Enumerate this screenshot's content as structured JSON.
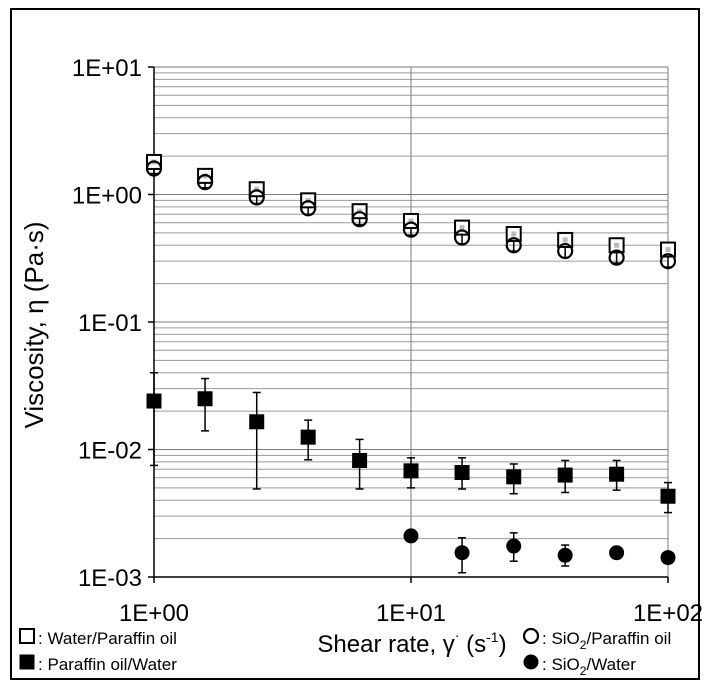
{
  "chart_data": {
    "type": "scatter",
    "title": "",
    "xlabel": "Shear rate, γ˙ (s⁻¹)",
    "ylabel": "Viscosity, η (Pa·s)",
    "x_scale": "log",
    "y_scale": "log",
    "xlim": [
      1,
      100
    ],
    "ylim": [
      0.001,
      10
    ],
    "x_ticks": [
      "1E+00",
      "1E+01",
      "1E+02"
    ],
    "y_ticks": [
      "1E-03",
      "1E-02",
      "1E-01",
      "1E+00",
      "1E+01"
    ],
    "grid": "major and minor horizontal, major vertical",
    "legend_position": "bottom",
    "series": [
      {
        "name": "Water/Paraffin oil",
        "marker": "open-square",
        "x": [
          1,
          1.58,
          2.51,
          3.98,
          6.31,
          10,
          15.8,
          25.1,
          39.8,
          63.1,
          100
        ],
        "y": [
          1.8,
          1.4,
          1.1,
          0.9,
          0.74,
          0.62,
          0.55,
          0.49,
          0.44,
          0.4,
          0.37
        ]
      },
      {
        "name": "SiO₂/Paraffin oil",
        "marker": "open-circle",
        "x": [
          1,
          1.58,
          2.51,
          3.98,
          6.31,
          10,
          15.8,
          25.1,
          39.8,
          63.1,
          100
        ],
        "y": [
          1.6,
          1.25,
          0.95,
          0.78,
          0.64,
          0.53,
          0.46,
          0.4,
          0.36,
          0.32,
          0.3
        ],
        "yerr": [
          0.14,
          0.12,
          0.1,
          0.08,
          0.06,
          0.05,
          0.05,
          0.04,
          0.04,
          0.03,
          0.03
        ]
      },
      {
        "name": "Paraffin oil/Water",
        "marker": "filled-square",
        "x": [
          1,
          1.58,
          2.51,
          3.98,
          6.31,
          10,
          15.8,
          25.1,
          39.8,
          63.1,
          100
        ],
        "y": [
          0.024,
          0.025,
          0.0165,
          0.0125,
          0.0082,
          0.0068,
          0.0066,
          0.0061,
          0.0063,
          0.0064,
          0.0043
        ],
        "y_low": [
          0.0075,
          0.014,
          0.0049,
          0.0083,
          0.0049,
          0.005,
          0.0049,
          0.0045,
          0.0046,
          0.0048,
          0.0032
        ],
        "y_high": [
          0.04,
          0.036,
          0.028,
          0.017,
          0.012,
          0.0086,
          0.0086,
          0.0077,
          0.0082,
          0.0082,
          0.0055
        ]
      },
      {
        "name": "SiO₂/Water",
        "marker": "filled-circle",
        "x": [
          10,
          15.8,
          25.1,
          39.8,
          63.1,
          100
        ],
        "y": [
          0.0021,
          0.00155,
          0.00175,
          0.00148,
          0.00155,
          0.00142
        ],
        "y_low": [
          0.0019,
          0.00108,
          0.00133,
          0.00122,
          0.00139,
          0.00134
        ],
        "y_high": [
          0.0023,
          0.00203,
          0.00222,
          0.00178,
          0.00168,
          0.0015
        ]
      }
    ],
    "legend": [
      {
        "marker": "open-square",
        "label": ": Water/Paraffin oil"
      },
      {
        "marker": "filled-square",
        "label": ": Paraffin oil/Water"
      },
      {
        "marker": "open-circle",
        "label_pre": ": SiO",
        "label_sub": "2",
        "label_post": "/Paraffin oil"
      },
      {
        "marker": "filled-circle",
        "label_pre": ": SiO",
        "label_sub": "2",
        "label_post": "/Water"
      }
    ]
  }
}
